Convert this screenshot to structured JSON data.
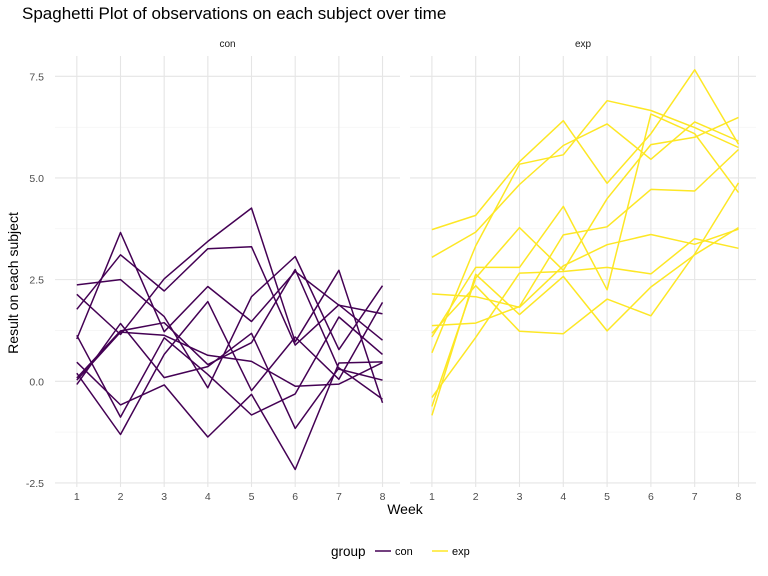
{
  "title": "Spaghetti Plot of observations on each subject over time",
  "colors": {
    "con": "#440154",
    "exp": "#FDE725",
    "grid_major": "#E5E5E5",
    "grid_minor": "#F2F2F2",
    "axis_text": "#4D4D4D"
  },
  "chart_data": {
    "type": "line",
    "title": "Spaghetti Plot of observations on each subject over time",
    "xlabel": "Week",
    "ylabel": "Result on each subject",
    "x": [
      1,
      2,
      3,
      4,
      5,
      6,
      7,
      8
    ],
    "x_ticks": [
      "1",
      "2",
      "3",
      "4",
      "5",
      "6",
      "7",
      "8"
    ],
    "ylim": [
      -2.6,
      8.0
    ],
    "y_ticks": [
      -2.5,
      0.0,
      2.5,
      5.0,
      7.5
    ],
    "y_tick_labels": [
      "-2.5",
      "0.0",
      "2.5",
      "5.0",
      "7.5"
    ],
    "grid": true,
    "legend": {
      "title": "group",
      "position": "bottom",
      "entries": [
        "con",
        "exp"
      ]
    },
    "panels": [
      {
        "name": "con",
        "color_key": "con",
        "series": [
          {
            "values": [
              0.2,
              -1.31,
              0.66,
              1.96,
              -0.23,
              1.09,
              0.05,
              1.94
            ]
          },
          {
            "values": [
              1.13,
              -0.88,
              1.07,
              0.17,
              -0.83,
              -0.31,
              1.58,
              0.66
            ]
          },
          {
            "values": [
              1.77,
              3.11,
              2.22,
              3.26,
              3.31,
              0.89,
              1.88,
              1.01
            ]
          },
          {
            "values": [
              1.04,
              3.66,
              1.22,
              2.33,
              1.47,
              2.7,
              1.87,
              1.66
            ]
          },
          {
            "values": [
              0.47,
              -0.58,
              -0.09,
              -1.37,
              -0.32,
              -2.17,
              0.45,
              0.48
            ]
          },
          {
            "values": [
              2.37,
              2.5,
              1.59,
              -0.16,
              2.08,
              3.07,
              0.78,
              2.35
            ]
          },
          {
            "values": [
              0.03,
              1.21,
              1.13,
              0.64,
              0.49,
              -0.12,
              -0.07,
              0.46
            ]
          },
          {
            "values": [
              -0.08,
              1.42,
              0.09,
              0.36,
              1.18,
              -1.16,
              0.33,
              -0.44
            ]
          },
          {
            "values": [
              0.08,
              1.24,
              1.44,
              0.41,
              0.95,
              2.75,
              0.3,
              0.03
            ]
          },
          {
            "values": [
              2.14,
              1.15,
              2.52,
              3.44,
              4.26,
              0.97,
              2.73,
              -0.53
            ]
          }
        ]
      },
      {
        "name": "exp",
        "color_key": "exp",
        "series": [
          {
            "values": [
              3.05,
              3.67,
              4.84,
              5.8,
              6.33,
              5.46,
              6.38,
              5.91
            ]
          },
          {
            "values": [
              -0.84,
              2.63,
              1.64,
              2.58,
              1.24,
              2.32,
              3.11,
              3.78
            ]
          },
          {
            "values": [
              2.15,
              2.08,
              1.82,
              2.84,
              3.36,
              3.61,
              3.37,
              3.74
            ]
          },
          {
            "values": [
              -0.62,
              2.54,
              3.78,
              2.73,
              4.49,
              5.82,
              6.0,
              6.49
            ]
          },
          {
            "values": [
              0.7,
              3.33,
              5.34,
              5.57,
              6.9,
              6.66,
              6.24,
              5.75
            ]
          },
          {
            "values": [
              3.73,
              4.08,
              5.4,
              6.41,
              4.87,
              6.09,
              7.66,
              5.83
            ]
          },
          {
            "values": [
              1.18,
              2.35,
              1.23,
              1.17,
              2.02,
              1.61,
              3.13,
              4.88
            ]
          },
          {
            "values": [
              1.37,
              1.43,
              1.84,
              3.6,
              3.8,
              4.72,
              4.68,
              5.7
            ]
          },
          {
            "values": [
              -0.4,
              1.08,
              2.66,
              2.7,
              2.8,
              2.64,
              3.51,
              3.27
            ]
          },
          {
            "values": [
              1.09,
              2.8,
              2.8,
              4.3,
              2.25,
              6.57,
              6.09,
              4.64
            ]
          }
        ]
      }
    ]
  }
}
